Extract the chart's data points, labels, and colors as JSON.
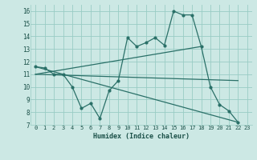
{
  "xlabel": "Humidex (Indice chaleur)",
  "background_color": "#cce8e4",
  "grid_color": "#99ccc4",
  "line_color": "#2a7068",
  "xlim": [
    -0.5,
    23.5
  ],
  "ylim": [
    7,
    16.5
  ],
  "xticks": [
    0,
    1,
    2,
    3,
    4,
    5,
    6,
    7,
    8,
    9,
    10,
    11,
    12,
    13,
    14,
    15,
    16,
    17,
    18,
    19,
    20,
    21,
    22,
    23
  ],
  "yticks": [
    7,
    8,
    9,
    10,
    11,
    12,
    13,
    14,
    15,
    16
  ],
  "series": [
    {
      "x": [
        0,
        1,
        2,
        3,
        4,
        5,
        6,
        7,
        8,
        9,
        10,
        11,
        12,
        13,
        14,
        15,
        16,
        17,
        18,
        19,
        20,
        21,
        22
      ],
      "y": [
        11.6,
        11.5,
        11.0,
        11.0,
        10.0,
        8.3,
        8.7,
        7.5,
        9.7,
        10.5,
        13.9,
        13.2,
        13.5,
        13.9,
        13.3,
        16.0,
        15.7,
        15.7,
        13.2,
        10.0,
        8.6,
        8.1,
        7.2
      ]
    },
    {
      "x": [
        0,
        22
      ],
      "y": [
        11.6,
        7.2
      ]
    },
    {
      "x": [
        0,
        18
      ],
      "y": [
        11.0,
        13.2
      ]
    },
    {
      "x": [
        0,
        22
      ],
      "y": [
        11.0,
        10.5
      ]
    }
  ]
}
